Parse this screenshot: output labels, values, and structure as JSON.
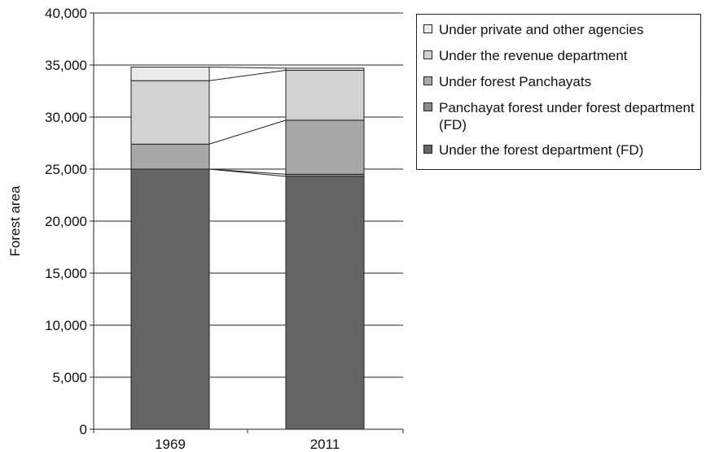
{
  "chart_data": {
    "type": "bar",
    "stacked": true,
    "categories": [
      "1969",
      "2011"
    ],
    "ylabel": "Forest area",
    "ylim": [
      0,
      40000
    ],
    "yticks": [
      0,
      5000,
      10000,
      15000,
      20000,
      25000,
      30000,
      35000,
      40000
    ],
    "ytick_labels": [
      "0",
      "5,000",
      "10,000",
      "15,000",
      "20,000",
      "25,000",
      "30,000",
      "35,000",
      "40,000"
    ],
    "grid": true,
    "legend_position": "top-right",
    "connector_lines": true,
    "series": [
      {
        "name": "Under the forest department (FD)",
        "color": "#646464",
        "values": [
          25000,
          24300
        ]
      },
      {
        "name": "Panchayat forest under forest department (FD)",
        "color": "#8c8c8c",
        "values": [
          0,
          200
        ]
      },
      {
        "name": "Under forest Panchayats",
        "color": "#a8a8a8",
        "values": [
          2400,
          5200
        ]
      },
      {
        "name": "Under the revenue department",
        "color": "#d2d2d2",
        "values": [
          6100,
          4800
        ]
      },
      {
        "name": "Under private and other agencies",
        "color": "#ececec",
        "values": [
          1300,
          200
        ]
      }
    ]
  },
  "legend": {
    "items": [
      {
        "label": "Under private and other agencies",
        "color": "#ececec"
      },
      {
        "label": "Under the revenue department",
        "color": "#d2d2d2"
      },
      {
        "label": "Under forest Panchayats",
        "color": "#a8a8a8"
      },
      {
        "label": "Panchayat forest under forest department (FD)",
        "color": "#8c8c8c"
      },
      {
        "label": "Under the forest department (FD)",
        "color": "#646464"
      }
    ]
  }
}
